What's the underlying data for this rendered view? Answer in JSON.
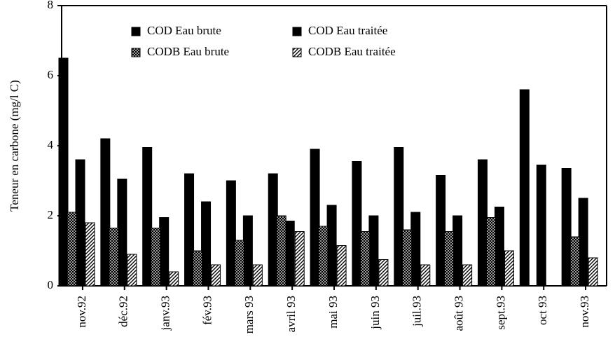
{
  "chart_data": {
    "type": "bar",
    "y_label": "Teneur en carbone (mg/l C)",
    "categories": [
      "nov.92",
      "déc.92",
      "janv.93",
      "fév.93",
      "mars 93",
      "avril 93",
      "mai 93",
      "juin 93",
      "juil.93",
      "août 93",
      "sept.93",
      "oct 93",
      "nov.93"
    ],
    "series": [
      {
        "name": "COD Eau brute",
        "color": "#000000",
        "pattern": "solid",
        "values": [
          6.5,
          4.2,
          3.95,
          3.2,
          3.0,
          3.2,
          3.9,
          3.55,
          3.95,
          3.15,
          3.6,
          5.6,
          3.35
        ]
      },
      {
        "name": "COD Eau traitée",
        "color": "#000000",
        "pattern": "solid",
        "values": [
          3.6,
          3.05,
          1.95,
          2.4,
          2.0,
          1.85,
          2.3,
          2.0,
          2.1,
          2.0,
          2.25,
          3.45,
          2.5
        ]
      },
      {
        "name": "CODB Eau brute",
        "color": "#000000",
        "pattern": "crosshatch",
        "values": [
          2.1,
          1.65,
          1.65,
          1.0,
          1.3,
          2.0,
          1.7,
          1.55,
          1.6,
          1.55,
          1.95,
          null,
          1.4
        ]
      },
      {
        "name": "CODB Eau traitée",
        "color": "#000000",
        "pattern": "diagonal",
        "values": [
          1.8,
          0.9,
          0.4,
          0.6,
          0.6,
          1.55,
          1.15,
          0.75,
          0.6,
          0.6,
          1.0,
          null,
          0.8
        ]
      }
    ],
    "ylim": [
      0,
      8
    ],
    "yticks": [
      0,
      2,
      4,
      6,
      8
    ]
  }
}
